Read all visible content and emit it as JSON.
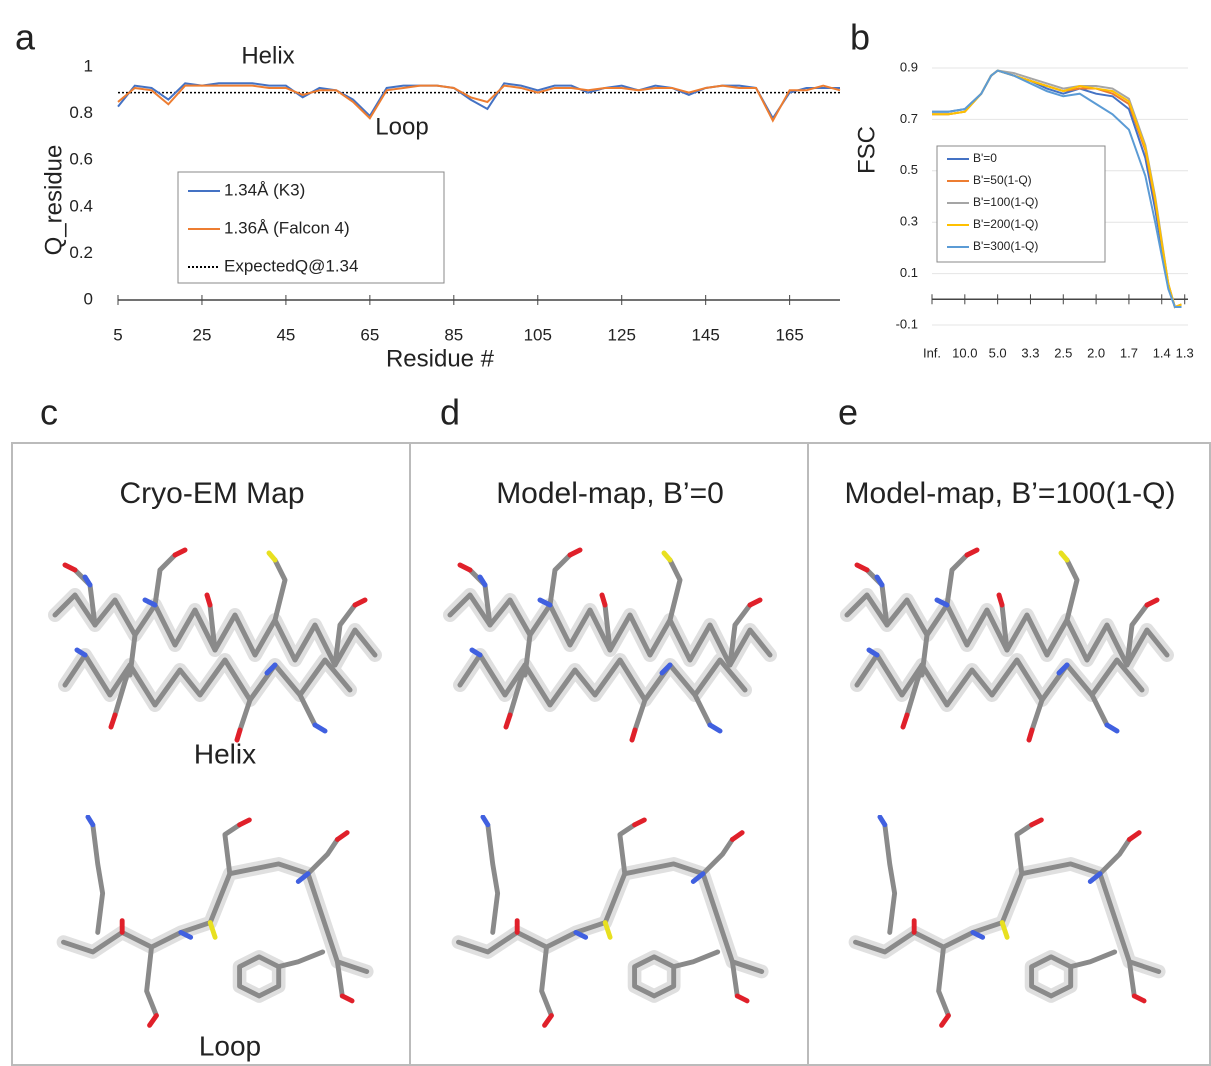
{
  "chart_data": [
    {
      "type": "line",
      "panel_label": "a",
      "xlabel": "Residue #",
      "ylabel": "Q_residue",
      "annotations": [
        "Helix",
        "Loop"
      ],
      "xlim": [
        5,
        177
      ],
      "ylim": [
        0,
        1
      ],
      "xticks": [
        5,
        25,
        45,
        65,
        85,
        105,
        125,
        145,
        165
      ],
      "yticks": [
        0,
        0.2,
        0.4,
        0.6,
        0.8,
        1
      ],
      "grid": false,
      "legend": "center-left",
      "x": [
        5,
        9,
        13,
        17,
        21,
        25,
        29,
        33,
        37,
        41,
        45,
        49,
        53,
        57,
        61,
        65,
        69,
        73,
        77,
        81,
        85,
        89,
        93,
        97,
        101,
        105,
        109,
        113,
        117,
        121,
        125,
        129,
        133,
        137,
        141,
        145,
        149,
        153,
        157,
        161,
        165,
        169,
        173,
        177
      ],
      "series": [
        {
          "name": "1.34Å (K3)",
          "color": "#4472c4",
          "values": [
            0.83,
            0.92,
            0.91,
            0.86,
            0.93,
            0.92,
            0.93,
            0.93,
            0.93,
            0.92,
            0.92,
            0.87,
            0.91,
            0.9,
            0.86,
            0.79,
            0.91,
            0.92,
            0.92,
            0.92,
            0.91,
            0.86,
            0.82,
            0.93,
            0.92,
            0.9,
            0.92,
            0.92,
            0.89,
            0.91,
            0.92,
            0.9,
            0.92,
            0.91,
            0.88,
            0.91,
            0.92,
            0.92,
            0.91,
            0.78,
            0.89,
            0.91,
            0.91,
            0.91
          ]
        },
        {
          "name": "1.36Å (Falcon 4)",
          "color": "#ed7d31",
          "values": [
            0.85,
            0.91,
            0.9,
            0.84,
            0.92,
            0.92,
            0.92,
            0.92,
            0.92,
            0.91,
            0.91,
            0.88,
            0.9,
            0.9,
            0.85,
            0.78,
            0.9,
            0.91,
            0.92,
            0.92,
            0.91,
            0.87,
            0.85,
            0.92,
            0.91,
            0.89,
            0.91,
            0.91,
            0.9,
            0.91,
            0.91,
            0.9,
            0.91,
            0.91,
            0.89,
            0.91,
            0.92,
            0.91,
            0.91,
            0.77,
            0.9,
            0.9,
            0.92,
            0.9
          ]
        }
      ],
      "reference_lines": [
        {
          "name": "ExpectedQ@1.34",
          "value": 0.89,
          "color": "#000000"
        }
      ]
    },
    {
      "type": "line",
      "panel_label": "b",
      "ylabel": "FSC",
      "xlim": [
        0,
        0.78
      ],
      "ylim": [
        -0.1,
        0.9
      ],
      "xticks": [
        {
          "value": 0,
          "label": "Inf."
        },
        {
          "value": 0.1,
          "label": "10.0"
        },
        {
          "value": 0.2,
          "label": "5.0"
        },
        {
          "value": 0.3,
          "label": "3.3"
        },
        {
          "value": 0.4,
          "label": "2.5"
        },
        {
          "value": 0.5,
          "label": "2.0"
        },
        {
          "value": 0.6,
          "label": "1.7"
        },
        {
          "value": 0.7,
          "label": "1.4"
        },
        {
          "value": 0.77,
          "label": "1.3"
        }
      ],
      "yticks": [
        -0.1,
        0.1,
        0.3,
        0.5,
        0.7,
        0.9
      ],
      "grid": true,
      "legend": "center-left",
      "x": [
        0,
        0.05,
        0.1,
        0.15,
        0.18,
        0.2,
        0.25,
        0.3,
        0.35,
        0.4,
        0.45,
        0.5,
        0.55,
        0.6,
        0.65,
        0.68,
        0.7,
        0.72,
        0.74,
        0.76
      ],
      "series": [
        {
          "name": "B'=0",
          "color": "#4472c4",
          "values": [
            0.73,
            0.73,
            0.74,
            0.8,
            0.87,
            0.89,
            0.87,
            0.85,
            0.82,
            0.8,
            0.82,
            0.8,
            0.79,
            0.74,
            0.55,
            0.35,
            0.2,
            0.05,
            -0.03,
            -0.03
          ]
        },
        {
          "name": "B'=50(1-Q)",
          "color": "#ed7d31",
          "values": [
            0.72,
            0.72,
            0.73,
            0.8,
            0.87,
            0.89,
            0.87,
            0.85,
            0.83,
            0.81,
            0.82,
            0.82,
            0.8,
            0.76,
            0.58,
            0.38,
            0.22,
            0.06,
            -0.03,
            -0.02
          ]
        },
        {
          "name": "B'=100(1-Q)",
          "color": "#a5a5a5",
          "values": [
            0.72,
            0.72,
            0.73,
            0.8,
            0.87,
            0.89,
            0.88,
            0.86,
            0.84,
            0.82,
            0.83,
            0.83,
            0.82,
            0.78,
            0.6,
            0.4,
            0.23,
            0.06,
            -0.03,
            -0.02
          ]
        },
        {
          "name": "B'=200(1-Q)",
          "color": "#ffc000",
          "values": [
            0.72,
            0.72,
            0.73,
            0.8,
            0.87,
            0.89,
            0.87,
            0.85,
            0.83,
            0.81,
            0.83,
            0.82,
            0.81,
            0.77,
            0.59,
            0.39,
            0.22,
            0.06,
            -0.03,
            -0.02
          ]
        },
        {
          "name": "B'=300(1-Q)",
          "color": "#5b9bd5",
          "values": [
            0.73,
            0.73,
            0.74,
            0.8,
            0.87,
            0.89,
            0.87,
            0.84,
            0.81,
            0.79,
            0.8,
            0.76,
            0.72,
            0.66,
            0.48,
            0.3,
            0.17,
            0.04,
            -0.03,
            -0.03
          ]
        }
      ]
    }
  ],
  "panels": [
    {
      "label": "c",
      "title": "Cryo-EM Map",
      "annotations": [
        "Helix",
        "Loop"
      ]
    },
    {
      "label": "d",
      "title": "Model-map, B’=0"
    },
    {
      "label": "e",
      "title": "Model-map, B’=100(1-Q)"
    }
  ]
}
